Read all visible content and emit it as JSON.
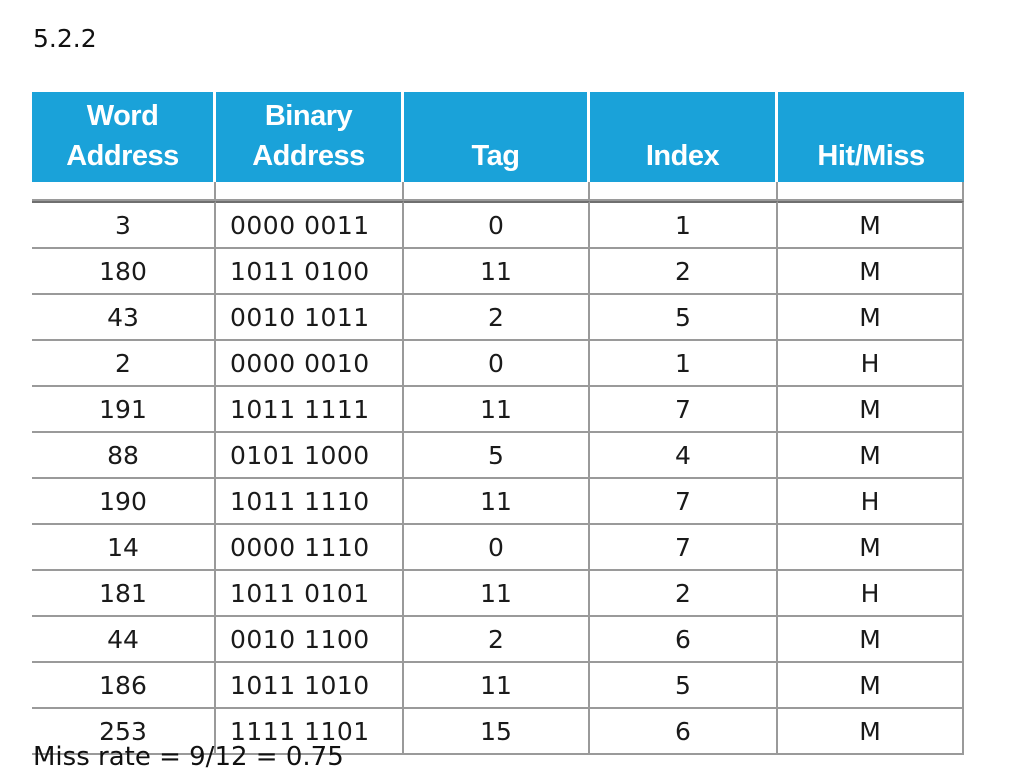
{
  "section_label": "5.2.2",
  "table": {
    "headers": [
      [
        "Word",
        "Address"
      ],
      [
        "Binary",
        "Address"
      ],
      [
        "",
        "Tag"
      ],
      [
        "",
        "Index"
      ],
      [
        "",
        "Hit/Miss"
      ]
    ],
    "rows": [
      [
        "3",
        "0000 0011",
        "0",
        "1",
        "M"
      ],
      [
        "180",
        "1011 0100",
        "11",
        "2",
        "M"
      ],
      [
        "43",
        "0010 1011",
        "2",
        "5",
        "M"
      ],
      [
        "2",
        "0000 0010",
        "0",
        "1",
        "H"
      ],
      [
        "191",
        "1011 1111",
        "11",
        "7",
        "M"
      ],
      [
        "88",
        "0101 1000",
        "5",
        "4",
        "M"
      ],
      [
        "190",
        "1011 1110",
        "11",
        "7",
        "H"
      ],
      [
        "14",
        "0000 1110",
        "0",
        "7",
        "M"
      ],
      [
        "181",
        "1011 0101",
        "11",
        "2",
        "H"
      ],
      [
        "44",
        "0010 1100",
        "2",
        "6",
        "M"
      ],
      [
        "186",
        "1011 1010",
        "11",
        "5",
        "M"
      ],
      [
        "253",
        "1111 1101",
        "15",
        "6",
        "M"
      ]
    ]
  },
  "footer": "Miss rate = 9/12 = 0.75",
  "colors": {
    "header_bg": "#1aa2d9",
    "header_text": "#ffffff",
    "grid": "#9a9a9a"
  }
}
